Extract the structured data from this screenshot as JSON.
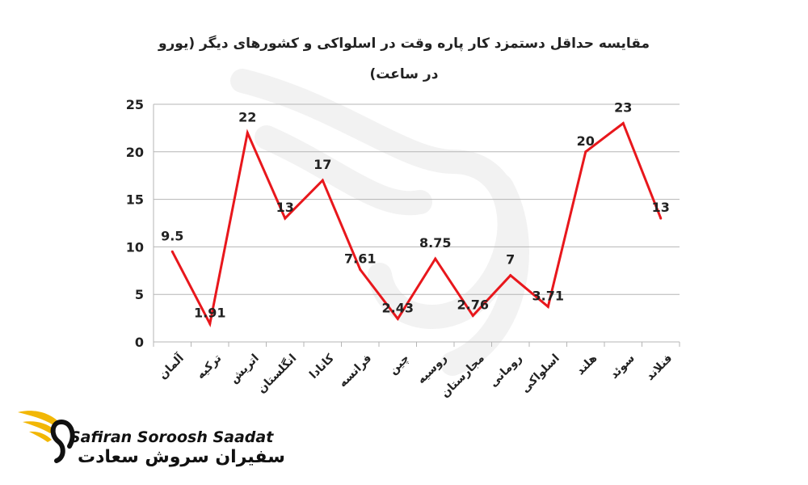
{
  "chart_data": {
    "type": "line",
    "title": "مقایسه حداقل دستمزد کار پاره وقت در اسلواکی و کشورهای دیگر (یورو",
    "title_line2": "در ساعت)",
    "categories": [
      "آلمان",
      "ترکیه",
      "اتریش",
      "انگلستان",
      "کانادا",
      "فرانسه",
      "چین",
      "روسیه",
      "مجارستان",
      "رومانی",
      "اسلواکی",
      "هلند",
      "سوئد",
      "فنلاند"
    ],
    "series": [
      {
        "values": [
          9.5,
          1.91,
          22,
          13,
          17,
          7.61,
          2.43,
          8.75,
          2.76,
          7,
          3.71,
          20,
          23,
          13
        ],
        "labels": [
          "9.5",
          "1.91",
          "22",
          "13",
          "17",
          "7.61",
          "2.43",
          "8.75",
          "2.76",
          "7",
          "3.71",
          "20",
          "23",
          "13"
        ],
        "color": "#e8171c"
      }
    ],
    "ylim": [
      0,
      25
    ],
    "yticks": [
      "0",
      "5",
      "10",
      "15",
      "20",
      "25"
    ],
    "grid": true,
    "legend": "none"
  },
  "brand": {
    "name_en": "Safiran Soroosh Saadat",
    "name_fa": "سفیران سروش سعادت",
    "logo_color": "#f2b705"
  }
}
